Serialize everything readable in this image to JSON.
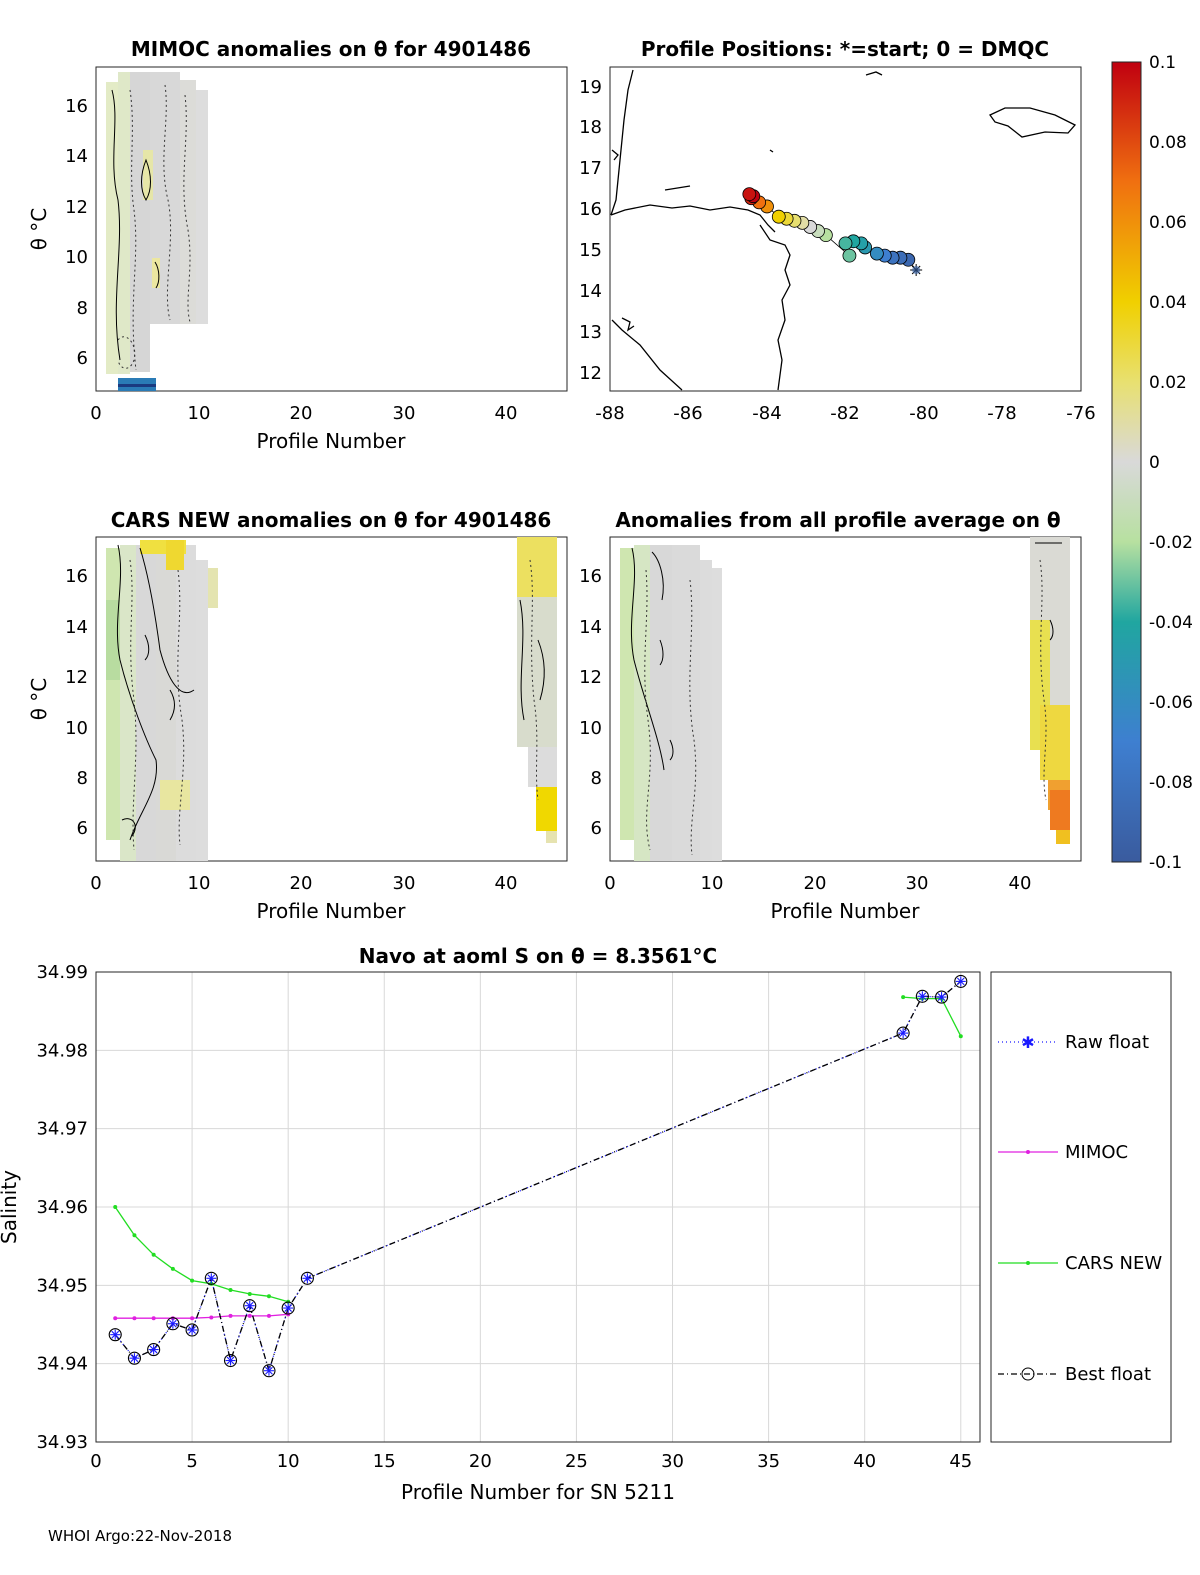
{
  "footer": "WHOI Argo:22-Nov-2018",
  "colors": {
    "raw": "#1a1aff",
    "mimoc": "#e020e0",
    "cars": "#22dd22",
    "best": "#000000",
    "grid": "#d8d8d8"
  },
  "panels": {
    "mimoc": {
      "title": "MIMOC anomalies on θ  for 4901486",
      "xlabel": "Profile Number",
      "ylabel": "θ °C",
      "xticks": [
        "0",
        "10",
        "20",
        "30",
        "40"
      ],
      "yticks": [
        "6",
        "8",
        "10",
        "12",
        "14",
        "16"
      ]
    },
    "map": {
      "title": "Profile Positions: *=start; 0 = DMQC",
      "xticks": [
        "-88",
        "-86",
        "-84",
        "-82",
        "-80",
        "-78",
        "-76"
      ],
      "yticks": [
        "12",
        "13",
        "14",
        "15",
        "16",
        "17",
        "18",
        "19"
      ]
    },
    "cars": {
      "title": "CARS NEW anomalies on θ for 4901486",
      "xlabel": "Profile Number",
      "ylabel": "θ °C",
      "xticks": [
        "0",
        "10",
        "20",
        "30",
        "40"
      ],
      "yticks": [
        "6",
        "8",
        "10",
        "12",
        "14",
        "16"
      ]
    },
    "allavg": {
      "title": "Anomalies from all profile average on θ",
      "xlabel": "Profile Number",
      "xticks": [
        "0",
        "10",
        "20",
        "30",
        "40"
      ],
      "yticks": [
        "6",
        "8",
        "10",
        "12",
        "14",
        "16"
      ]
    }
  },
  "colorbar": {
    "ticks": [
      "0.1",
      "0.08",
      "0.06",
      "0.04",
      "0.02",
      "0",
      "-0.02",
      "-0.04",
      "-0.06",
      "-0.08",
      "-0.1"
    ]
  },
  "chart_data": [
    {
      "type": "line",
      "title": "Navo at aoml S on θ = 8.3561°C",
      "xlabel": "Profile Number for SN 5211",
      "ylabel": "Salinity",
      "xlim": [
        0,
        46
      ],
      "ylim": [
        34.93,
        34.99
      ],
      "xticks": [
        "0",
        "5",
        "10",
        "15",
        "20",
        "25",
        "30",
        "35",
        "40",
        "45"
      ],
      "yticks": [
        "34.93",
        "34.94",
        "34.95",
        "34.96",
        "34.97",
        "34.98",
        "34.99"
      ],
      "legend": [
        "Raw float",
        "MIMOC",
        "CARS NEW",
        "Best float"
      ],
      "series": [
        {
          "name": "Raw float",
          "x": [
            1,
            2,
            3,
            4,
            5,
            6,
            7,
            8,
            9,
            10,
            11,
            42,
            43,
            44,
            45
          ],
          "y": [
            34.9437,
            34.9407,
            34.9418,
            34.9451,
            34.9443,
            34.9509,
            34.9404,
            34.9474,
            34.9391,
            34.9471,
            34.9509,
            34.9822,
            34.9869,
            34.9868,
            34.9888
          ]
        },
        {
          "name": "MIMOC",
          "x": [
            1,
            2,
            3,
            4,
            5,
            6,
            7,
            8,
            9,
            10
          ],
          "y": [
            34.9458,
            34.9458,
            34.9458,
            34.9458,
            34.9458,
            34.9459,
            34.9461,
            34.9461,
            34.9461,
            34.9463
          ]
        },
        {
          "name": "CARS NEW",
          "x": [
            1,
            2,
            3,
            4,
            5,
            6,
            7,
            8,
            9,
            10,
            42,
            43,
            44,
            45
          ],
          "y": [
            34.96,
            34.9564,
            34.9539,
            34.9521,
            34.9506,
            34.9502,
            34.9494,
            34.9489,
            34.9486,
            34.9479,
            34.9868,
            34.9866,
            34.9866,
            34.9818
          ]
        },
        {
          "name": "Best float",
          "x": [
            1,
            2,
            3,
            4,
            5,
            6,
            7,
            8,
            9,
            10,
            11,
            42,
            43,
            44,
            45
          ],
          "y": [
            34.9437,
            34.9407,
            34.9418,
            34.9451,
            34.9443,
            34.9509,
            34.9404,
            34.9474,
            34.9391,
            34.9471,
            34.9509,
            34.9822,
            34.9869,
            34.9868,
            34.9888
          ]
        }
      ]
    },
    {
      "type": "scatter",
      "title": "Profile Positions: *=start; 0 = DMQC",
      "xlim": [
        -88,
        -76
      ],
      "ylim": [
        11.6,
        19.5
      ],
      "x": [
        -80.2,
        -80.4,
        -80.6,
        -80.8,
        -81.0,
        -81.2,
        -81.5,
        -81.6,
        -81.8,
        -82.0,
        -81.9,
        -82.5,
        -82.7,
        -82.9,
        -83.1,
        -83.3,
        -83.5,
        -83.7,
        -84.0,
        -84.2,
        -84.4,
        -84.35,
        -84.45
      ],
      "y": [
        14.55,
        14.8,
        14.85,
        14.85,
        14.9,
        14.95,
        15.1,
        15.2,
        15.25,
        15.2,
        14.9,
        15.4,
        15.5,
        15.6,
        15.7,
        15.75,
        15.8,
        15.85,
        16.1,
        16.2,
        16.3,
        16.35,
        16.4
      ],
      "values": [
        -0.09,
        -0.09,
        -0.085,
        -0.08,
        -0.07,
        -0.06,
        -0.05,
        -0.045,
        -0.04,
        -0.035,
        -0.03,
        -0.02,
        -0.01,
        0.0,
        0.01,
        0.02,
        0.03,
        0.04,
        0.06,
        0.07,
        0.09,
        0.1,
        0.095
      ]
    }
  ]
}
